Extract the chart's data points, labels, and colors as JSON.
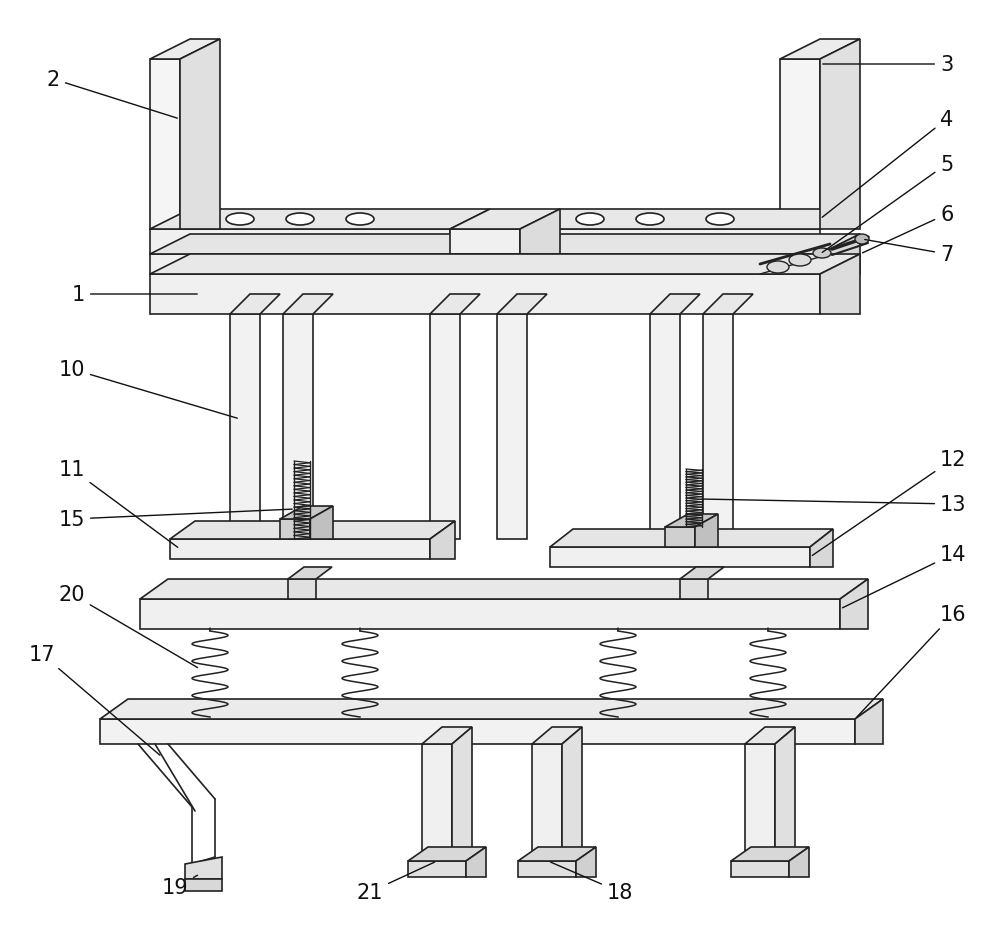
{
  "bg_color": "#ffffff",
  "line_color": "#222222",
  "lw": 1.2,
  "fig_width": 10.0,
  "fig_height": 9.53,
  "font_size": 15,
  "ann_color": "#111111"
}
